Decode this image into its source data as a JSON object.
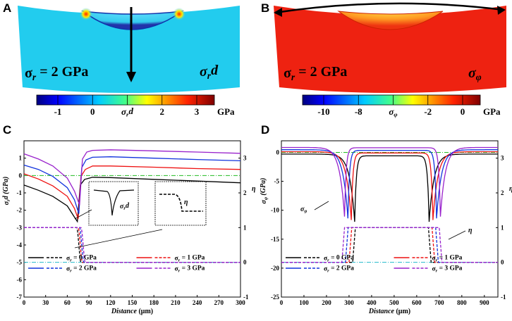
{
  "colors": {
    "s0": "#000000",
    "s1": "#ee1111",
    "s2": "#1133dd",
    "s3": "#9922cc",
    "green_ref": "#22bb22",
    "cyan_ref": "#22bbcc",
    "contour_a": "#22ccee",
    "contour_b": "#ee2211"
  },
  "panel_a": {
    "label": "A",
    "annot_left": "σr = 2 GPa",
    "annot_right": "σrd",
    "colorbar": {
      "ticks": [
        "-1",
        "0",
        "σrd",
        "2",
        "3"
      ],
      "unit": "GPa"
    }
  },
  "panel_b": {
    "label": "B",
    "annot_left": "σr = 2 GPa",
    "annot_right": "σφ",
    "colorbar": {
      "ticks": [
        "-10",
        "-8",
        "σφ",
        "-2",
        "0"
      ],
      "unit": "GPa"
    }
  },
  "chart_data": [
    {
      "panel": "C",
      "type": "line",
      "xlabel": "Distance (μm)",
      "ylabel": "σrd (GPa)",
      "y2label": "η",
      "xlim": [
        0,
        300
      ],
      "ylim": [
        -7,
        2
      ],
      "y2lim": [
        -1,
        3.5
      ],
      "xticks": [
        0,
        30,
        60,
        90,
        120,
        150,
        180,
        210,
        240,
        270,
        300
      ],
      "yticks": [
        -7,
        -6,
        -5,
        -4,
        -3,
        -2,
        -1,
        0,
        1
      ],
      "y2ticks": [
        -1,
        0,
        1,
        2,
        3
      ],
      "sigma_series": [
        {
          "name": "σr = 0 GPa",
          "color_key": "s0",
          "x": [
            0,
            20,
            40,
            60,
            70,
            74,
            78,
            84,
            95,
            120,
            180,
            240,
            300
          ],
          "y": [
            -0.55,
            -0.85,
            -1.2,
            -1.75,
            -2.4,
            -2.65,
            -0.55,
            -0.22,
            -0.1,
            -0.12,
            -0.22,
            -0.32,
            -0.42
          ]
        },
        {
          "name": "σr = 1 GPa",
          "color_key": "s1",
          "x": [
            0,
            20,
            40,
            60,
            70,
            75,
            79,
            85,
            95,
            120,
            180,
            240,
            300
          ],
          "y": [
            0.1,
            -0.2,
            -0.6,
            -1.2,
            -1.9,
            -2.5,
            -0.05,
            0.35,
            0.55,
            0.55,
            0.48,
            0.4,
            0.35
          ]
        },
        {
          "name": "σr = 2 GPa",
          "color_key": "s2",
          "x": [
            0,
            20,
            40,
            60,
            70,
            76,
            80,
            86,
            95,
            120,
            180,
            240,
            300
          ],
          "y": [
            0.6,
            0.35,
            -0.05,
            -0.7,
            -1.4,
            -2.2,
            0.45,
            0.9,
            1.05,
            1.08,
            1.0,
            0.92,
            0.85
          ]
        },
        {
          "name": "σr = 3 GPa",
          "color_key": "s3",
          "x": [
            0,
            20,
            40,
            60,
            70,
            77,
            81,
            87,
            95,
            120,
            180,
            240,
            300
          ],
          "y": [
            1.25,
            0.95,
            0.55,
            -0.15,
            -0.9,
            -1.7,
            0.95,
            1.35,
            1.45,
            1.48,
            1.42,
            1.35,
            1.28
          ]
        }
      ],
      "eta_series": [
        {
          "name": "σr = 0 GPa",
          "color_key": "s0",
          "x0": 73,
          "x1": 79
        },
        {
          "name": "σr = 1 GPa",
          "color_key": "s1",
          "x0": 75,
          "x1": 81
        },
        {
          "name": "σr = 2 GPa",
          "color_key": "s2",
          "x0": 77,
          "x1": 83
        },
        {
          "name": "σr = 3 GPa",
          "color_key": "s3",
          "x0": 79,
          "x1": 85
        }
      ],
      "ref_lines": [
        {
          "axis": "y",
          "value": 0,
          "color_key": "green_ref"
        },
        {
          "axis": "y2",
          "value": 0,
          "color_key": "cyan_ref"
        }
      ],
      "inset_labels": [
        "σrd",
        "η"
      ],
      "legend": [
        "σr = 0 GPa",
        "σr = 1 GPa",
        "σr = 2 GPa",
        "σr = 3 GPa"
      ]
    },
    {
      "panel": "D",
      "type": "line",
      "xlabel": "Distance (μm)",
      "ylabel": "σφ (GPa)",
      "y2label": "η",
      "xlim": [
        0,
        960
      ],
      "ylim": [
        -25,
        2
      ],
      "y2lim": [
        -1,
        3.5
      ],
      "xticks": [
        0,
        100,
        200,
        300,
        400,
        500,
        600,
        700,
        800,
        900
      ],
      "yticks": [
        -25,
        -20,
        -15,
        -10,
        -5,
        0
      ],
      "y2ticks": [
        -1,
        0,
        1,
        2,
        3
      ],
      "sigma_series": [
        {
          "name": "σr = 0 GPa",
          "color_key": "s0",
          "base": -0.3,
          "mid": -0.6,
          "dip_left": 325,
          "dip_right": 655,
          "depth": -12
        },
        {
          "name": "σr = 1 GPa",
          "color_key": "s1",
          "base": 0.1,
          "mid": -0.1,
          "dip_left": 310,
          "dip_right": 672,
          "depth": -11.7
        },
        {
          "name": "σr = 2 GPa",
          "color_key": "s2",
          "base": 0.45,
          "mid": 0.35,
          "dip_left": 295,
          "dip_right": 688,
          "depth": -11.4
        },
        {
          "name": "σr = 3 GPa",
          "color_key": "s3",
          "base": 0.85,
          "mid": 0.8,
          "dip_left": 280,
          "dip_right": 705,
          "depth": -11.1
        }
      ],
      "eta_series": [
        {
          "name": "σr = 0 GPa",
          "color_key": "s0",
          "x0": 328,
          "x1": 652
        },
        {
          "name": "σr = 1 GPa",
          "color_key": "s1",
          "x0": 312,
          "x1": 668
        },
        {
          "name": "σr = 2 GPa",
          "color_key": "s2",
          "x0": 296,
          "x1": 684
        },
        {
          "name": "σr = 3 GPa",
          "color_key": "s3",
          "x0": 280,
          "x1": 700
        }
      ],
      "ref_lines": [
        {
          "axis": "y",
          "value": 0,
          "color_key": "green_ref"
        },
        {
          "axis": "y2",
          "value": 0,
          "color_key": "cyan_ref"
        }
      ],
      "inset_labels": [
        "σφ",
        "η"
      ],
      "legend": [
        "σr = 0 GPa",
        "σr = 1 GPa",
        "σr = 2 GPa",
        "σr = 3 GPa"
      ]
    }
  ]
}
